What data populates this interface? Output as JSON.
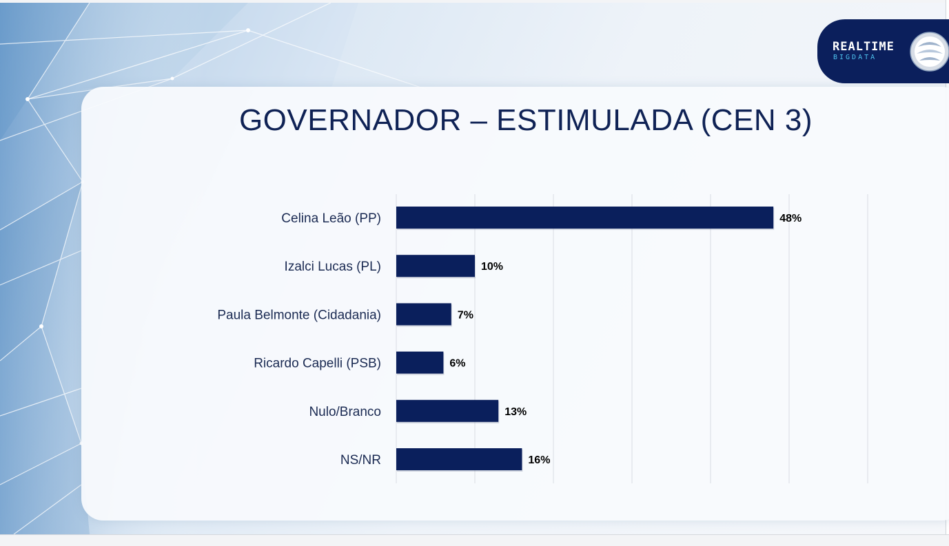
{
  "logo": {
    "line1": "REALTIME",
    "line2": "BIGDATA"
  },
  "colors": {
    "bar": "#0a1f5c",
    "title": "#0f2255",
    "grid": "#d9dce2",
    "logo_bg": "#0b1f5c",
    "logo_accent": "#4ec3ee"
  },
  "chart_data": {
    "type": "bar",
    "orientation": "horizontal",
    "title": "GOVERNADOR – ESTIMULADA (CEN 3)",
    "categories": [
      "Celina Leão (PP)",
      "Izalci Lucas (PL)",
      "Paula Belmonte (Cidadania)",
      "Ricardo Capelli (PSB)",
      "Nulo/Branco",
      "NS/NR"
    ],
    "values": [
      48,
      10,
      7,
      6,
      13,
      16
    ],
    "data_labels": [
      "48%",
      "10%",
      "7%",
      "6%",
      "13%",
      "16%"
    ],
    "xlim": [
      0,
      60
    ],
    "unit": "%",
    "grid": true,
    "legend": false
  }
}
